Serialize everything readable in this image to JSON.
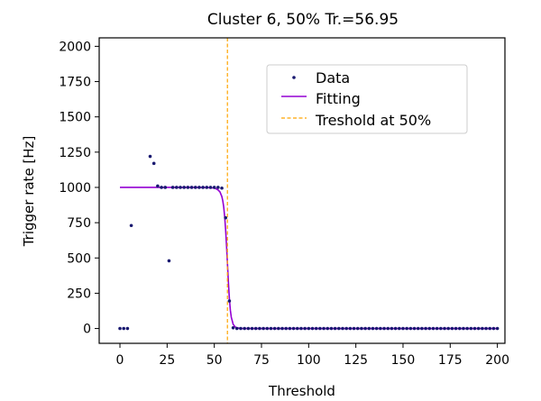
{
  "chart_data": {
    "type": "scatter",
    "title": "Cluster 6, 50% Tr.=56.95",
    "xlabel": "Threshold",
    "ylabel": "Trigger rate [Hz]",
    "xlim": [
      -11,
      204
    ],
    "ylim": [
      -105,
      2060
    ],
    "xticks": [
      0,
      25,
      50,
      75,
      100,
      125,
      150,
      175,
      200
    ],
    "yticks": [
      0,
      250,
      500,
      750,
      1000,
      1250,
      1500,
      1750,
      2000
    ],
    "grid": false,
    "legend": {
      "placement": "upper center",
      "entries": [
        "Data",
        "Fitting",
        "Treshold at 50%"
      ]
    },
    "colors": {
      "data": "#191970",
      "fitting": "#9400d3",
      "threshold": "#ffa500"
    },
    "series": [
      {
        "name": "Data",
        "style": "points",
        "x": [
          0,
          2,
          4,
          6,
          16,
          18,
          20,
          22,
          24,
          26,
          28,
          30,
          32,
          34,
          36,
          38,
          40,
          42,
          44,
          46,
          48,
          50,
          52,
          54,
          56,
          58,
          60,
          62,
          64,
          66,
          68,
          70,
          72,
          74,
          76,
          78,
          80,
          82,
          84,
          86,
          88,
          90,
          92,
          94,
          96,
          98,
          100,
          102,
          104,
          106,
          108,
          110,
          112,
          114,
          116,
          118,
          120,
          122,
          124,
          126,
          128,
          130,
          132,
          134,
          136,
          138,
          140,
          142,
          144,
          146,
          148,
          150,
          152,
          154,
          156,
          158,
          160,
          162,
          164,
          166,
          168,
          170,
          172,
          174,
          176,
          178,
          180,
          182,
          184,
          186,
          188,
          190,
          192,
          194,
          196,
          198,
          200
        ],
        "y": [
          0,
          0,
          0,
          730,
          1220,
          1170,
          1010,
          1000,
          1000,
          480,
          1000,
          1000,
          1000,
          1000,
          1000,
          1000,
          1000,
          1000,
          1000,
          1000,
          1000,
          1000,
          1000,
          995,
          785,
          195,
          5,
          0,
          0,
          0,
          0,
          0,
          0,
          0,
          0,
          0,
          0,
          0,
          0,
          0,
          0,
          0,
          0,
          0,
          0,
          0,
          0,
          0,
          0,
          0,
          0,
          0,
          0,
          0,
          0,
          0,
          0,
          0,
          0,
          0,
          0,
          0,
          0,
          0,
          0,
          0,
          0,
          0,
          0,
          0,
          0,
          0,
          0,
          0,
          0,
          0,
          0,
          0,
          0,
          0,
          0,
          0,
          0,
          0,
          0,
          0,
          0,
          0,
          0,
          0,
          0,
          0,
          0,
          0,
          0,
          0,
          0
        ]
      },
      {
        "name": "Fitting",
        "style": "line",
        "x": [
          0,
          40,
          45,
          48,
          50,
          51,
          52,
          53,
          54,
          54.5,
          55,
          55.5,
          56,
          56.5,
          57,
          57.5,
          58,
          58.5,
          59,
          60,
          61,
          62,
          64,
          70,
          200
        ],
        "y": [
          1000,
          1000,
          999,
          998,
          995,
          990,
          982,
          968,
          935,
          905,
          860,
          790,
          700,
          580,
          450,
          320,
          210,
          130,
          80,
          30,
          12,
          5,
          1,
          0,
          0
        ]
      },
      {
        "name": "Treshold at 50%",
        "style": "vline",
        "x": 56.95
      }
    ]
  }
}
